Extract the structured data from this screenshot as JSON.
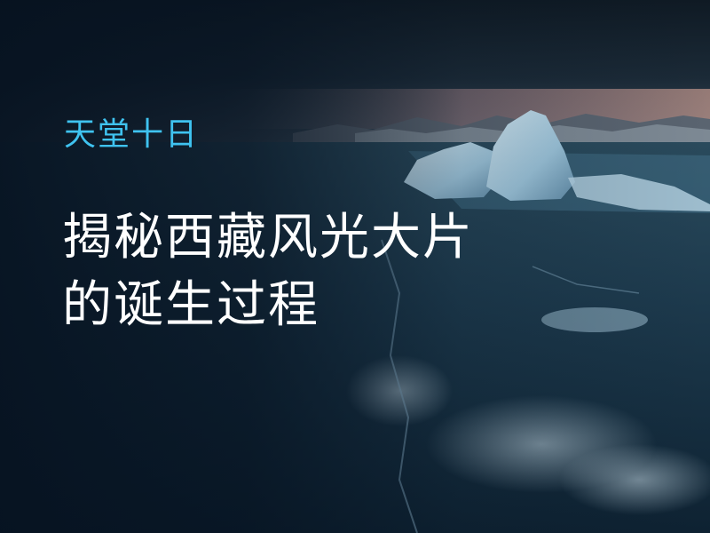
{
  "banner": {
    "eyebrow": "天堂十日",
    "headline_line1": "揭秘西藏风光大片",
    "headline_line2": "的诞生过程"
  },
  "colors": {
    "eyebrow": "#3fc3f0",
    "headline": "#ffffff",
    "background": "#0b1c2c"
  }
}
